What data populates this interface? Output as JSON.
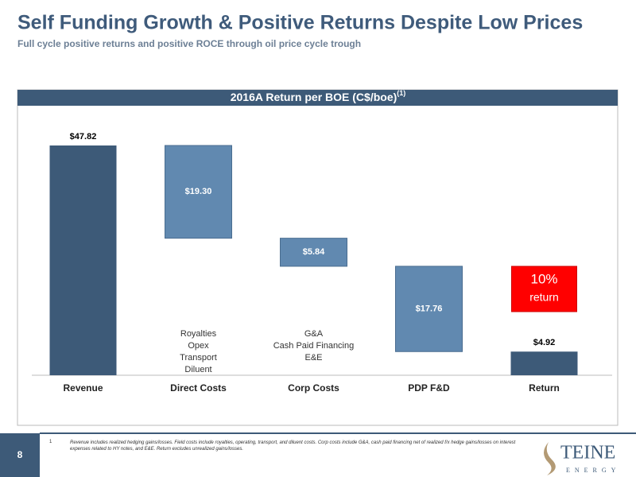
{
  "slide": {
    "title": "Self Funding Growth & Positive Returns Despite Low Prices",
    "subtitle": "Full cycle positive returns and positive ROCE through oil price cycle trough",
    "page": "8"
  },
  "footnote": {
    "marker": "1",
    "text": "Revenue includes realized hedging gains/losses. Field costs include royalties, operating, transport, and diluent costs. Corp costs include G&A, cash paid financing net of realized f/x hedge gains/losses on interest expenses related to HY notes, and E&E. Return excludes unrealized gains/losses."
  },
  "logo": {
    "name": "TEINE",
    "sub": "ENERGY"
  },
  "chart_data": {
    "type": "waterfall",
    "title": "2016A Return per BOE (C$/boe)",
    "title_note": "(1)",
    "categories": [
      "Revenue",
      "Direct Costs",
      "Corp Costs",
      "PDP F&D",
      "Return"
    ],
    "values": [
      47.82,
      19.3,
      5.84,
      17.76,
      4.92
    ],
    "value_labels": [
      "$47.82",
      "$19.30",
      "$5.84",
      "$17.76",
      "$4.92"
    ],
    "measure": [
      "absolute",
      "decrease",
      "decrease",
      "decrease",
      "total"
    ],
    "colors": {
      "absolute": "#3d5a78",
      "total": "#3d5a78",
      "decrease": "#6189b0"
    },
    "annotations": [
      null,
      [
        "Royalties",
        "Opex",
        "Transport",
        "Diluent"
      ],
      [
        "G&A",
        "Cash Paid Financing",
        "E&E"
      ],
      null,
      null
    ],
    "callout": [
      "10%",
      "return"
    ]
  }
}
